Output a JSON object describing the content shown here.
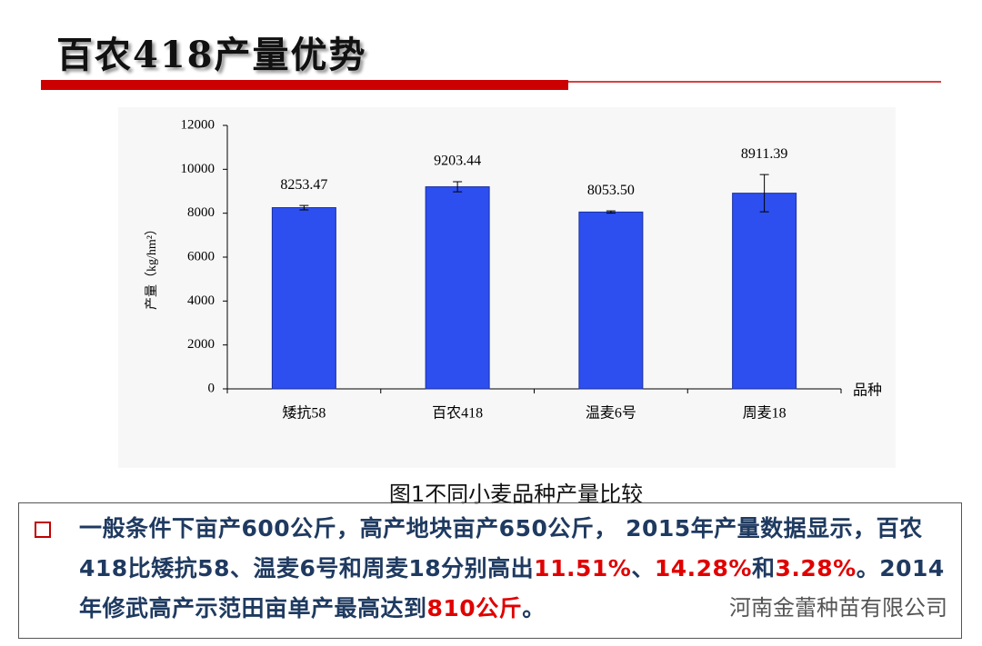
{
  "title": "百农418产量优势",
  "chart_data": {
    "type": "bar",
    "ylabel": "产量（kg/hm²）",
    "xlabel": "品种",
    "categories": [
      "矮抗58",
      "百农418",
      "温麦6号",
      "周麦18"
    ],
    "values": [
      8253.47,
      9203.44,
      8053.5,
      8911.39
    ],
    "value_labels": [
      "8253.47",
      "9203.44",
      "8053.50",
      "8911.39"
    ],
    "errors": [
      100,
      230,
      50,
      850
    ],
    "color": "#2d4ff0",
    "ylim": [
      0,
      12000
    ],
    "yticks": [
      0,
      2000,
      4000,
      6000,
      8000,
      10000,
      12000
    ]
  },
  "caption": "图1不同小麦品种产量比较",
  "body": {
    "segments": [
      {
        "text": "一般条件下亩产600公斤，高产地块亩产650公斤， 2015年产量数据显示，百农418比矮抗58、温麦6号和周麦18分别高出",
        "color": "#1f3a60"
      },
      {
        "text": "11.51%",
        "color": "#e00000"
      },
      {
        "text": "、",
        "color": "#1f3a60"
      },
      {
        "text": "14.28%",
        "color": "#e00000"
      },
      {
        "text": "和",
        "color": "#1f3a60"
      },
      {
        "text": "3.28%",
        "color": "#e00000"
      },
      {
        "text": "。2014年修武高产示范田亩单产最高达到",
        "color": "#1f3a60"
      },
      {
        "text": "810公斤",
        "color": "#e00000"
      },
      {
        "text": "。",
        "color": "#1f3a60"
      }
    ]
  },
  "watermark": "河南金蕾种苗有限公司"
}
